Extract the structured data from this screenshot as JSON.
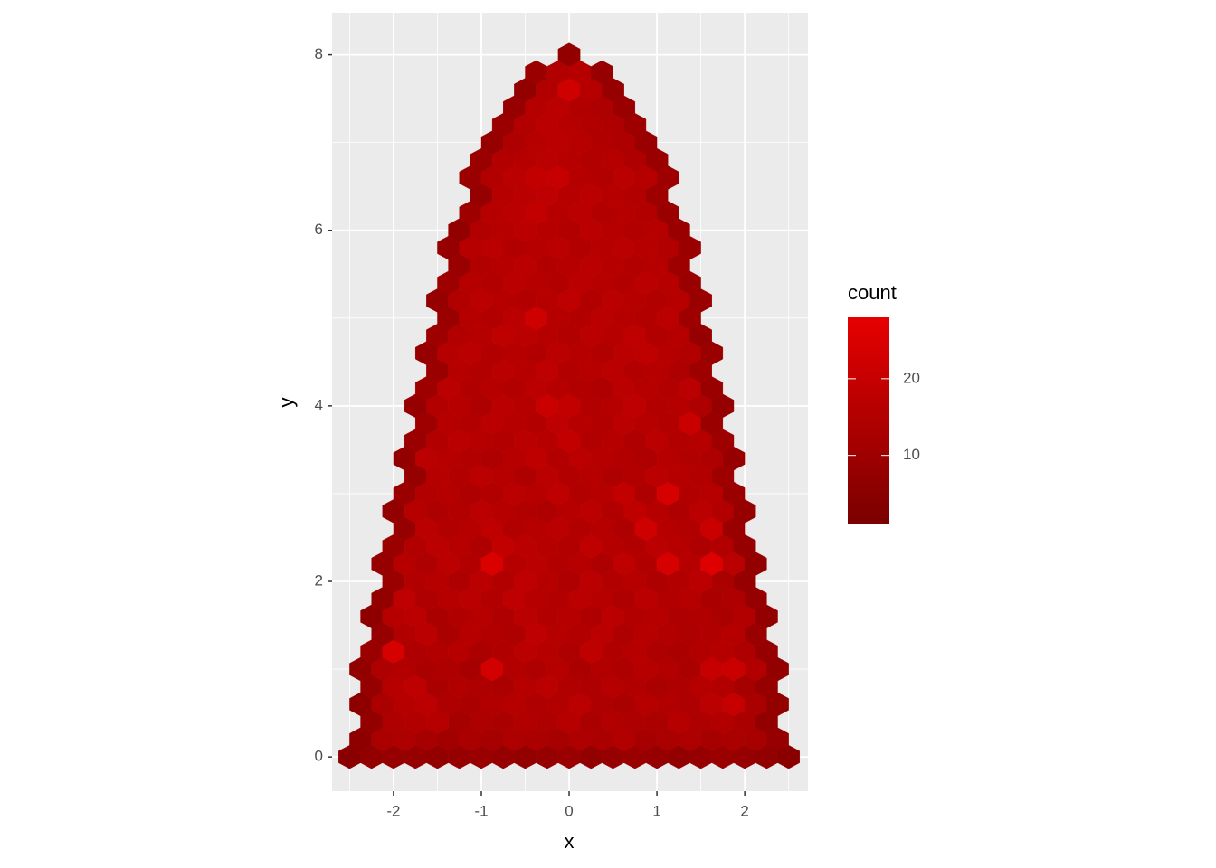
{
  "chart_data": {
    "type": "hexbin",
    "x_label": "x",
    "y_label": "y",
    "legend_title": "count",
    "xlim": [
      -2.7,
      2.72
    ],
    "ylim": [
      -0.39,
      8.48
    ],
    "xticks": [
      -2,
      -1,
      0,
      1,
      2
    ],
    "yticks": [
      0,
      2,
      4,
      6,
      8
    ],
    "xminor": [
      -2.5,
      -1.5,
      -0.5,
      0.5,
      1.5,
      2.5
    ],
    "yminor": [
      1,
      3,
      5,
      7
    ],
    "grid": true,
    "binwidth": 0.25,
    "fill_lim": [
      1,
      28
    ],
    "fill_ticks": [
      10,
      20
    ],
    "low_color": "#7a0000",
    "high_color": "#e60000",
    "rows": [
      {
        "y": 0,
        "x_start": -2.5,
        "values": [
          5,
          7,
          8,
          8,
          7,
          8,
          9,
          8,
          7,
          8,
          9,
          7,
          8,
          9,
          8,
          7,
          8,
          9,
          8,
          7,
          5
        ]
      },
      {
        "y": 0.2,
        "x_start": -2.375,
        "values": [
          6,
          13,
          14,
          12,
          11,
          13,
          12,
          14,
          13,
          12,
          14,
          13,
          15,
          12,
          13,
          14,
          12,
          13,
          12,
          8
        ]
      },
      {
        "y": 0.4,
        "x_start": -2.25,
        "values": [
          7,
          14,
          15,
          16,
          12,
          14,
          13,
          15,
          14,
          16,
          13,
          15,
          14,
          13,
          16,
          14,
          15,
          13,
          7
        ]
      },
      {
        "y": 0.6,
        "x_start": -2.375,
        "values": [
          6,
          13,
          16,
          17,
          14,
          13,
          15,
          16,
          14,
          15,
          17,
          14,
          13,
          16,
          15,
          14,
          17,
          20,
          13,
          7
        ]
      },
      {
        "y": 0.8,
        "x_start": -2.25,
        "values": [
          8,
          16,
          18,
          13,
          15,
          14,
          13,
          16,
          17,
          15,
          14,
          16,
          15,
          13,
          14,
          16,
          15,
          12,
          8
        ]
      },
      {
        "y": 1.0,
        "x_start": -2.375,
        "values": [
          7,
          14,
          15,
          13,
          14,
          12,
          23,
          15,
          14,
          16,
          13,
          15,
          14,
          16,
          15,
          13,
          20,
          21,
          15,
          7
        ]
      },
      {
        "y": 1.2,
        "x_start": -2.25,
        "values": [
          9,
          24,
          14,
          15,
          16,
          13,
          15,
          17,
          16,
          14,
          18,
          15,
          16,
          14,
          13,
          15,
          16,
          14,
          8
        ]
      },
      {
        "y": 1.4,
        "x_start": -2.125,
        "values": [
          8,
          15,
          17,
          13,
          16,
          15,
          14,
          18,
          16,
          15,
          17,
          14,
          16,
          15,
          14,
          15,
          16,
          9
        ]
      },
      {
        "y": 1.6,
        "x_start": -2.25,
        "values": [
          6,
          16,
          17,
          13,
          15,
          16,
          14,
          17,
          15,
          16,
          14,
          17,
          15,
          16,
          14,
          15,
          13,
          15,
          7
        ]
      },
      {
        "y": 1.8,
        "x_start": -2.125,
        "values": [
          7,
          18,
          14,
          16,
          17,
          15,
          18,
          16,
          15,
          17,
          16,
          14,
          17,
          15,
          16,
          13,
          14,
          8
        ]
      },
      {
        "y": 2.0,
        "x_start": -2.0,
        "values": [
          9,
          15,
          16,
          14,
          17,
          15,
          18,
          16,
          14,
          17,
          15,
          16,
          14,
          15,
          17,
          13,
          8
        ]
      },
      {
        "y": 2.2,
        "x_start": -2.125,
        "values": [
          8,
          16,
          14,
          17,
          15,
          25,
          16,
          17,
          15,
          16,
          14,
          18,
          15,
          24,
          16,
          26,
          17,
          7
        ]
      },
      {
        "y": 2.4,
        "x_start": -2.0,
        "values": [
          9,
          15,
          17,
          16,
          14,
          19,
          17,
          16,
          15,
          18,
          16,
          15,
          17,
          16,
          14,
          15,
          8
        ]
      },
      {
        "y": 2.6,
        "x_start": -1.875,
        "values": [
          8,
          17,
          15,
          16,
          18,
          15,
          16,
          17,
          15,
          16,
          14,
          22,
          16,
          15,
          21,
          9
        ]
      },
      {
        "y": 2.8,
        "x_start": -2.0,
        "values": [
          7,
          16,
          14,
          15,
          17,
          16,
          15,
          14,
          16,
          17,
          15,
          18,
          16,
          14,
          17,
          15,
          8
        ]
      },
      {
        "y": 3.0,
        "x_start": -1.875,
        "values": [
          9,
          15,
          16,
          14,
          15,
          17,
          16,
          18,
          15,
          16,
          19,
          14,
          24,
          15,
          16,
          9
        ]
      },
      {
        "y": 3.2,
        "x_start": -1.75,
        "values": [
          8,
          16,
          15,
          17,
          16,
          14,
          17,
          15,
          16,
          14,
          15,
          17,
          16,
          15,
          10
        ]
      },
      {
        "y": 3.4,
        "x_start": -1.875,
        "values": [
          7,
          17,
          16,
          15,
          14,
          16,
          18,
          15,
          17,
          16,
          15,
          14,
          16,
          15,
          14,
          8
        ]
      },
      {
        "y": 3.6,
        "x_start": -1.75,
        "values": [
          9,
          15,
          17,
          16,
          15,
          17,
          16,
          19,
          15,
          16,
          14,
          17,
          15,
          16,
          10
        ]
      },
      {
        "y": 3.8,
        "x_start": -1.625,
        "values": [
          10,
          16,
          15,
          17,
          16,
          15,
          18,
          16,
          15,
          17,
          16,
          15,
          21,
          9
        ]
      },
      {
        "y": 4.0,
        "x_start": -1.75,
        "values": [
          8,
          15,
          16,
          14,
          17,
          16,
          21,
          19,
          15,
          16,
          18,
          15,
          16,
          14,
          8
        ]
      },
      {
        "y": 4.2,
        "x_start": -1.625,
        "values": [
          10,
          17,
          15,
          16,
          15,
          17,
          16,
          15,
          14,
          17,
          16,
          15,
          17,
          9
        ]
      },
      {
        "y": 4.4,
        "x_start": -1.5,
        "values": [
          9,
          16,
          15,
          17,
          16,
          18,
          15,
          16,
          17,
          15,
          16,
          14,
          10
        ]
      },
      {
        "y": 4.6,
        "x_start": -1.625,
        "values": [
          8,
          16,
          17,
          15,
          16,
          15,
          17,
          16,
          15,
          17,
          18,
          16,
          15,
          9
        ]
      },
      {
        "y": 4.8,
        "x_start": -1.5,
        "values": [
          10,
          15,
          16,
          18,
          17,
          16,
          15,
          17,
          16,
          18,
          15,
          16,
          8
        ]
      },
      {
        "y": 5.0,
        "x_start": -1.375,
        "values": [
          9,
          16,
          15,
          17,
          22,
          16,
          15,
          17,
          16,
          15,
          17,
          10
        ]
      },
      {
        "y": 5.2,
        "x_start": -1.5,
        "values": [
          8,
          15,
          17,
          16,
          15,
          16,
          18,
          15,
          17,
          16,
          15,
          16,
          9
        ]
      },
      {
        "y": 5.4,
        "x_start": -1.375,
        "values": [
          10,
          16,
          15,
          17,
          16,
          15,
          17,
          16,
          15,
          17,
          16,
          9
        ]
      },
      {
        "y": 5.6,
        "x_start": -1.25,
        "values": [
          9,
          15,
          16,
          17,
          15,
          16,
          17,
          16,
          15,
          16,
          10
        ]
      },
      {
        "y": 5.8,
        "x_start": -1.375,
        "values": [
          8,
          16,
          17,
          15,
          16,
          17,
          15,
          16,
          17,
          16,
          15,
          9
        ]
      },
      {
        "y": 6.0,
        "x_start": -1.25,
        "values": [
          7,
          15,
          16,
          17,
          16,
          15,
          17,
          16,
          15,
          16,
          9
        ]
      },
      {
        "y": 6.2,
        "x_start": -1.125,
        "values": [
          10,
          16,
          17,
          19,
          16,
          17,
          15,
          16,
          15,
          9
        ]
      },
      {
        "y": 6.4,
        "x_start": -1.0,
        "values": [
          8,
          16,
          17,
          18,
          16,
          17,
          16,
          15,
          10
        ]
      },
      {
        "y": 6.6,
        "x_start": -1.125,
        "values": [
          9,
          15,
          17,
          19,
          20,
          16,
          15,
          17,
          16,
          10
        ]
      },
      {
        "y": 6.8,
        "x_start": -1.0,
        "values": [
          9,
          15,
          16,
          17,
          16,
          15,
          16,
          14,
          9
        ]
      },
      {
        "y": 7.0,
        "x_start": -0.875,
        "values": [
          8,
          14,
          16,
          17,
          16,
          15,
          14,
          9
        ]
      },
      {
        "y": 7.2,
        "x_start": -0.75,
        "values": [
          9,
          15,
          17,
          16,
          15,
          14,
          10
        ]
      },
      {
        "y": 7.4,
        "x_start": -0.625,
        "values": [
          8,
          16,
          17,
          15,
          14,
          9
        ]
      },
      {
        "y": 7.6,
        "x_start": -0.5,
        "values": [
          7,
          15,
          22,
          16,
          8
        ]
      },
      {
        "y": 7.8,
        "x_start": -0.375,
        "values": [
          9,
          15,
          16,
          8
        ]
      },
      {
        "y": 8.0,
        "x_start": 0,
        "values": [
          7
        ]
      }
    ]
  }
}
